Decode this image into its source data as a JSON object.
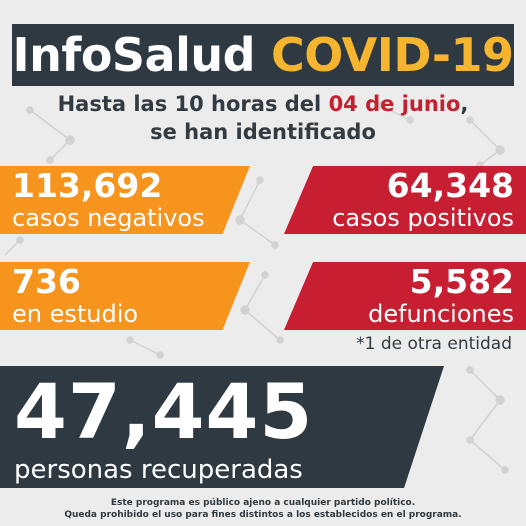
{
  "header": {
    "title_part1": "InfoSalud",
    "title_part2": "COVID-19"
  },
  "subtitle": {
    "line1_prefix": "Hasta las 10 horas del ",
    "line1_date": "04 de junio",
    "line1_suffix": ",",
    "line2": "se han identificado"
  },
  "stats": {
    "negative": {
      "value": "113,692",
      "label": "casos negativos"
    },
    "positive": {
      "value": "64,348",
      "label": "casos positivos"
    },
    "study": {
      "value": "736",
      "label": "en estudio"
    },
    "deaths": {
      "value": "5,582",
      "label": "defunciones"
    },
    "deaths_note": "*1 de otra entidad",
    "recovered": {
      "value": "47,445",
      "label": "personas recuperadas"
    }
  },
  "footer": {
    "line1": "Este programa es público ajeno a cualquier partido político.",
    "line2": "Queda prohibido el uso para fines distintos a los establecidos en el programa."
  },
  "colors": {
    "dark": "#2e3942",
    "orange": "#f7941d",
    "red": "#c81e32",
    "yellow": "#f5b52e"
  }
}
